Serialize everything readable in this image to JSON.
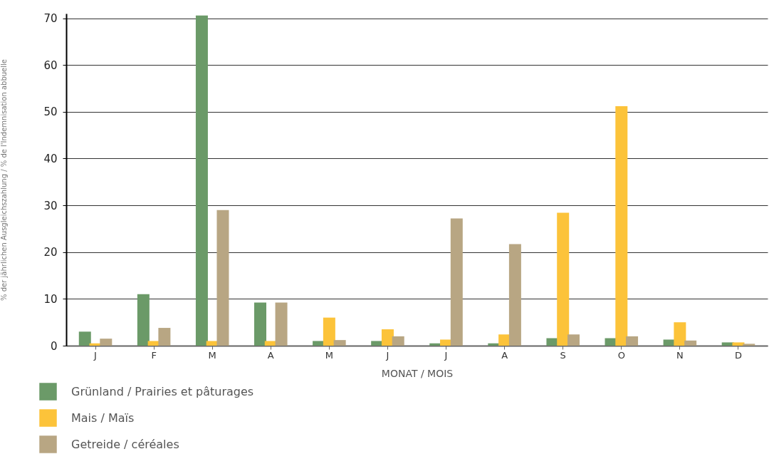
{
  "chart_data": {
    "type": "bar",
    "xlabel": "MONAT / MOIS",
    "ylabel": "% der jährlichen Ausgleichszahlung / % de l'Indemnisation abbuelle",
    "categories": [
      "J",
      "F",
      "M",
      "A",
      "M",
      "J",
      "J",
      "A",
      "S",
      "O",
      "N",
      "D"
    ],
    "series": [
      {
        "name": "Grünland / Prairies et pâturages",
        "color": "#6b9a68",
        "values": [
          3.0,
          11.0,
          70.6,
          9.2,
          1.0,
          1.0,
          0.5,
          0.5,
          1.6,
          1.6,
          1.3,
          0.7
        ]
      },
      {
        "name": "Mais / Maïs",
        "color": "#fcc33a",
        "values": [
          0.5,
          1.0,
          1.0,
          1.0,
          6.0,
          3.5,
          1.3,
          2.4,
          28.4,
          51.2,
          5.0,
          0.7
        ]
      },
      {
        "name": "Getreide / céréales",
        "color": "#b8a683",
        "values": [
          1.5,
          3.8,
          29.0,
          9.2,
          1.2,
          2.0,
          27.2,
          21.7,
          2.4,
          2.0,
          1.1,
          0.4
        ]
      }
    ],
    "ylim": [
      0,
      71
    ],
    "yticks": [
      0,
      10,
      20,
      30,
      40,
      50,
      60,
      70
    ],
    "grid": "y",
    "legend": "bottom left"
  }
}
